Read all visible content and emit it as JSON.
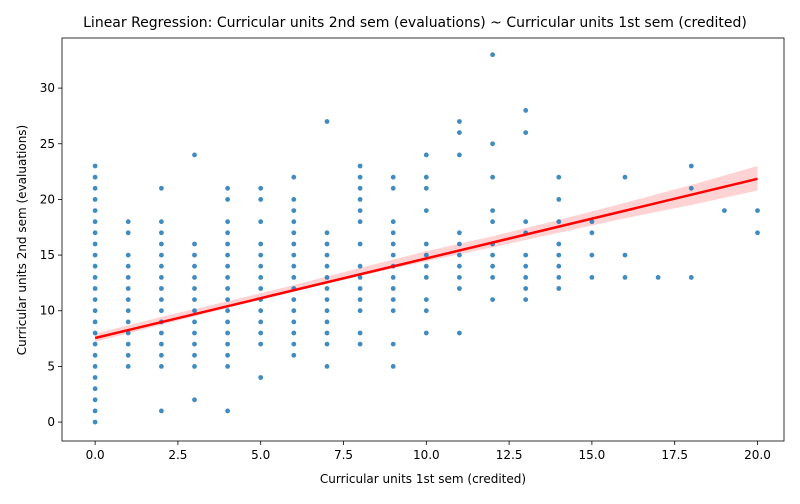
{
  "chart_data": {
    "type": "scatter",
    "title": "Linear Regression: Curricular units 2nd sem (evaluations) ~ Curricular units 1st sem (credited)",
    "xlabel": "Curricular units 1st sem (credited)",
    "ylabel": "Curricular units 2nd sem (evaluations)",
    "xlim": [
      -1,
      20.8
    ],
    "ylim": [
      -1.7,
      34.5
    ],
    "x_ticks": [
      0.0,
      2.5,
      5.0,
      7.5,
      10.0,
      12.5,
      15.0,
      17.5,
      20.0
    ],
    "x_tick_labels": [
      "0.0",
      "2.5",
      "5.0",
      "7.5",
      "10.0",
      "12.5",
      "15.0",
      "17.5",
      "20.0"
    ],
    "y_ticks": [
      0,
      5,
      10,
      15,
      20,
      25,
      30
    ],
    "y_tick_labels": [
      "0",
      "5",
      "10",
      "15",
      "20",
      "25",
      "30"
    ],
    "grid": false,
    "colors": {
      "points": "#1f77b4",
      "regression_line": "#ff0000",
      "ci_band": "#ffb6b6"
    },
    "regression": {
      "intercept": 7.55,
      "slope": 0.715,
      "x_range": [
        0,
        20
      ]
    },
    "confidence_band": {
      "x": [
        0,
        2,
        4,
        6,
        8,
        10,
        12,
        14,
        16,
        18,
        20
      ],
      "lower": [
        7.2,
        8.75,
        10.25,
        11.75,
        13.15,
        14.45,
        15.7,
        17.0,
        18.3,
        19.5,
        20.8
      ],
      "upper": [
        7.95,
        9.45,
        10.85,
        12.3,
        13.85,
        15.35,
        16.7,
        18.15,
        19.7,
        21.3,
        23.0
      ]
    },
    "points": [
      [
        0,
        0
      ],
      [
        0,
        1
      ],
      [
        0,
        2
      ],
      [
        0,
        3
      ],
      [
        0,
        4
      ],
      [
        0,
        5
      ],
      [
        0,
        6
      ],
      [
        0,
        7
      ],
      [
        0,
        8
      ],
      [
        0,
        9
      ],
      [
        0,
        10
      ],
      [
        0,
        11
      ],
      [
        0,
        12
      ],
      [
        0,
        13
      ],
      [
        0,
        14
      ],
      [
        0,
        15
      ],
      [
        0,
        16
      ],
      [
        0,
        17
      ],
      [
        0,
        18
      ],
      [
        0,
        19
      ],
      [
        0,
        20
      ],
      [
        0,
        21
      ],
      [
        0,
        22
      ],
      [
        0,
        23
      ],
      [
        1,
        5
      ],
      [
        1,
        6
      ],
      [
        1,
        7
      ],
      [
        1,
        8
      ],
      [
        1,
        9
      ],
      [
        1,
        10
      ],
      [
        1,
        11
      ],
      [
        1,
        12
      ],
      [
        1,
        13
      ],
      [
        1,
        14
      ],
      [
        1,
        15
      ],
      [
        1,
        17
      ],
      [
        1,
        18
      ],
      [
        2,
        1
      ],
      [
        2,
        5
      ],
      [
        2,
        6
      ],
      [
        2,
        7
      ],
      [
        2,
        8
      ],
      [
        2,
        9
      ],
      [
        2,
        10
      ],
      [
        2,
        11
      ],
      [
        2,
        12
      ],
      [
        2,
        13
      ],
      [
        2,
        14
      ],
      [
        2,
        15
      ],
      [
        2,
        16
      ],
      [
        2,
        17
      ],
      [
        2,
        18
      ],
      [
        2,
        21
      ],
      [
        3,
        2
      ],
      [
        3,
        5
      ],
      [
        3,
        6
      ],
      [
        3,
        7
      ],
      [
        3,
        8
      ],
      [
        3,
        9
      ],
      [
        3,
        10
      ],
      [
        3,
        11
      ],
      [
        3,
        12
      ],
      [
        3,
        13
      ],
      [
        3,
        14
      ],
      [
        3,
        15
      ],
      [
        3,
        16
      ],
      [
        3,
        24
      ],
      [
        4,
        1
      ],
      [
        4,
        5
      ],
      [
        4,
        6
      ],
      [
        4,
        7
      ],
      [
        4,
        8
      ],
      [
        4,
        9
      ],
      [
        4,
        10
      ],
      [
        4,
        11
      ],
      [
        4,
        12
      ],
      [
        4,
        13
      ],
      [
        4,
        14
      ],
      [
        4,
        15
      ],
      [
        4,
        16
      ],
      [
        4,
        17
      ],
      [
        4,
        18
      ],
      [
        4,
        20
      ],
      [
        4,
        21
      ],
      [
        5,
        4
      ],
      [
        5,
        7
      ],
      [
        5,
        8
      ],
      [
        5,
        9
      ],
      [
        5,
        10
      ],
      [
        5,
        11
      ],
      [
        5,
        12
      ],
      [
        5,
        13
      ],
      [
        5,
        14
      ],
      [
        5,
        15
      ],
      [
        5,
        16
      ],
      [
        5,
        18
      ],
      [
        5,
        20
      ],
      [
        5,
        21
      ],
      [
        6,
        6
      ],
      [
        6,
        7
      ],
      [
        6,
        8
      ],
      [
        6,
        9
      ],
      [
        6,
        10
      ],
      [
        6,
        11
      ],
      [
        6,
        12
      ],
      [
        6,
        13
      ],
      [
        6,
        14
      ],
      [
        6,
        15
      ],
      [
        6,
        16
      ],
      [
        6,
        17
      ],
      [
        6,
        18
      ],
      [
        6,
        19
      ],
      [
        6,
        20
      ],
      [
        6,
        22
      ],
      [
        7,
        5
      ],
      [
        7,
        7
      ],
      [
        7,
        8
      ],
      [
        7,
        9
      ],
      [
        7,
        10
      ],
      [
        7,
        11
      ],
      [
        7,
        12
      ],
      [
        7,
        13
      ],
      [
        7,
        14
      ],
      [
        7,
        15
      ],
      [
        7,
        16
      ],
      [
        7,
        17
      ],
      [
        7,
        27
      ],
      [
        8,
        7
      ],
      [
        8,
        8
      ],
      [
        8,
        10
      ],
      [
        8,
        11
      ],
      [
        8,
        12
      ],
      [
        8,
        13
      ],
      [
        8,
        14
      ],
      [
        8,
        16
      ],
      [
        8,
        18
      ],
      [
        8,
        19
      ],
      [
        8,
        20
      ],
      [
        8,
        21
      ],
      [
        8,
        22
      ],
      [
        8,
        23
      ],
      [
        9,
        5
      ],
      [
        9,
        7
      ],
      [
        9,
        10
      ],
      [
        9,
        11
      ],
      [
        9,
        12
      ],
      [
        9,
        13
      ],
      [
        9,
        14
      ],
      [
        9,
        15
      ],
      [
        9,
        16
      ],
      [
        9,
        17
      ],
      [
        9,
        18
      ],
      [
        9,
        21
      ],
      [
        9,
        22
      ],
      [
        10,
        8
      ],
      [
        10,
        10
      ],
      [
        10,
        11
      ],
      [
        10,
        13
      ],
      [
        10,
        14
      ],
      [
        10,
        15
      ],
      [
        10,
        16
      ],
      [
        10,
        19
      ],
      [
        10,
        21
      ],
      [
        10,
        22
      ],
      [
        10,
        24
      ],
      [
        11,
        8
      ],
      [
        11,
        12
      ],
      [
        11,
        13
      ],
      [
        11,
        14
      ],
      [
        11,
        15
      ],
      [
        11,
        16
      ],
      [
        11,
        17
      ],
      [
        11,
        24
      ],
      [
        11,
        26
      ],
      [
        11,
        27
      ],
      [
        12,
        11
      ],
      [
        12,
        13
      ],
      [
        12,
        14
      ],
      [
        12,
        15
      ],
      [
        12,
        16
      ],
      [
        12,
        18
      ],
      [
        12,
        19
      ],
      [
        12,
        22
      ],
      [
        12,
        25
      ],
      [
        12,
        33
      ],
      [
        13,
        11
      ],
      [
        13,
        12
      ],
      [
        13,
        13
      ],
      [
        13,
        14
      ],
      [
        13,
        15
      ],
      [
        13,
        17
      ],
      [
        13,
        18
      ],
      [
        13,
        26
      ],
      [
        13,
        28
      ],
      [
        14,
        12
      ],
      [
        14,
        13
      ],
      [
        14,
        14
      ],
      [
        14,
        15
      ],
      [
        14,
        16
      ],
      [
        14,
        18
      ],
      [
        14,
        20
      ],
      [
        14,
        22
      ],
      [
        15,
        13
      ],
      [
        15,
        15
      ],
      [
        15,
        17
      ],
      [
        15,
        18
      ],
      [
        16,
        13
      ],
      [
        16,
        15
      ],
      [
        16,
        22
      ],
      [
        17,
        13
      ],
      [
        18,
        13
      ],
      [
        18,
        21
      ],
      [
        18,
        23
      ],
      [
        19,
        19
      ],
      [
        20,
        17
      ],
      [
        20,
        19
      ]
    ]
  }
}
